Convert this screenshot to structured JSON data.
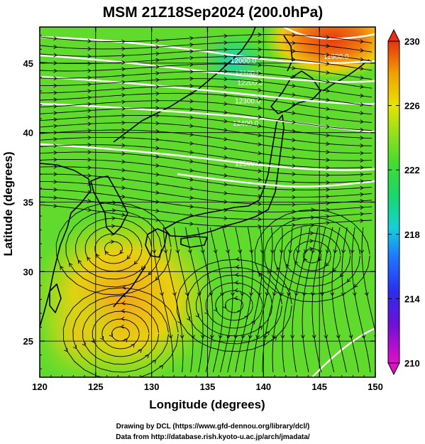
{
  "chart_data": {
    "type": "heatmap",
    "title": "MSM 21Z18Sep2024 (200.0hPa)",
    "xlabel": "Longitude (degrees)",
    "ylabel": "Latitude  (degrees)",
    "xlim": [
      120,
      150
    ],
    "ylim": [
      22.4,
      47.6
    ],
    "xticks": [
      120,
      125,
      130,
      135,
      140,
      145,
      150
    ],
    "yticks": [
      25,
      30,
      35,
      40,
      45
    ],
    "colorbar": {
      "ticks": [
        210,
        214,
        218,
        222,
        226,
        230
      ],
      "range": [
        210,
        230
      ],
      "colors": [
        "#e010c8",
        "#3f1ce0",
        "#1d78ff",
        "#16d4d8",
        "#18d86a",
        "#7fdc18",
        "#e8e400",
        "#f0a000",
        "#e83010"
      ]
    },
    "contours": [
      {
        "label": "11900.0",
        "lon": 146.5,
        "lat": 45.3
      },
      {
        "label": "12000.0",
        "lon": 138.2,
        "lat": 45.0
      },
      {
        "label": "12100.0",
        "lon": 138.6,
        "lat": 44.1
      },
      {
        "label": "12200.0",
        "lon": 138.8,
        "lat": 43.4
      },
      {
        "label": "12300.0",
        "lon": 138.6,
        "lat": 42.1
      },
      {
        "label": "12400.0",
        "lon": 138.4,
        "lat": 40.5
      },
      {
        "label": "12500.0",
        "lon": 138.6,
        "lat": 37.6
      }
    ],
    "grid": true,
    "colorbar_placement": "right"
  },
  "credits": {
    "line1": "Drawing by DCL (https://www.gfd-dennou.org/library/dcl/)",
    "line2": "Data from http://database.rish.kyoto-u.ac.jp/arch/jmadata/"
  }
}
